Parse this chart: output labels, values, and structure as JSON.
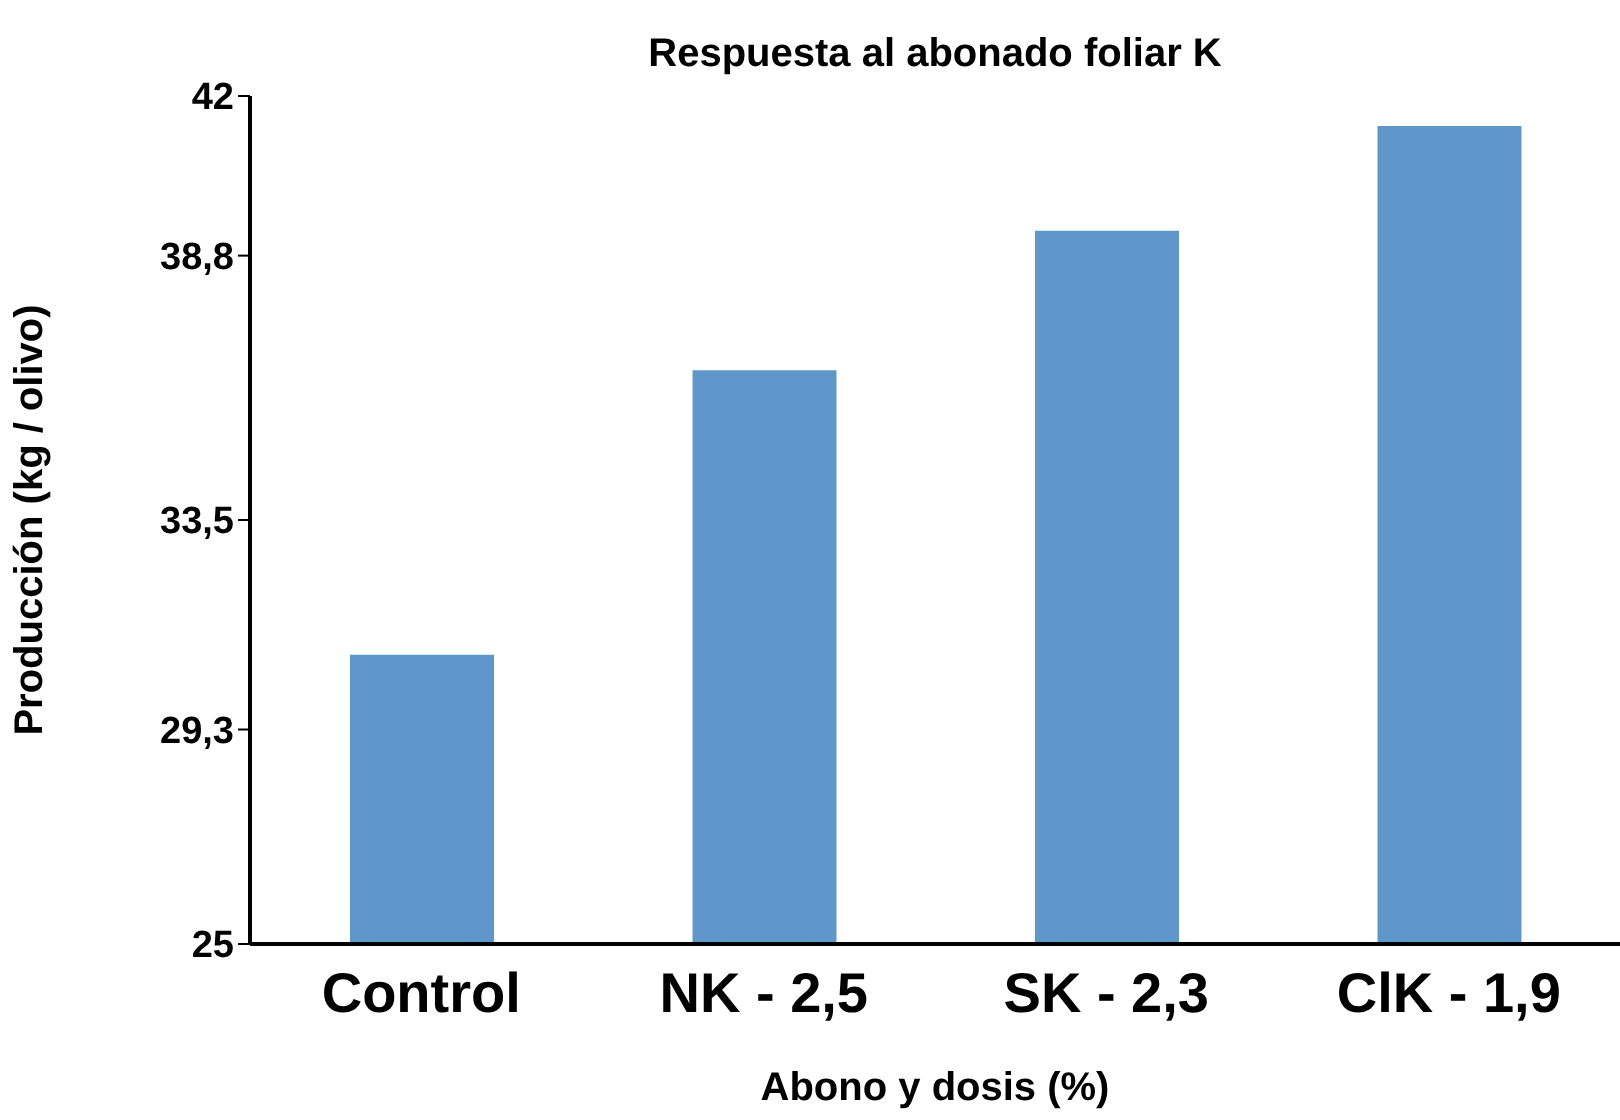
{
  "chart_data": {
    "type": "bar",
    "title": "Respuesta al abonado foliar K",
    "xlabel": "Abono y dosis (%)",
    "ylabel": "Producción (kg / olivo)",
    "categories": [
      "Control",
      "NK - 2,5",
      "SK - 2,3",
      "ClK - 1,9"
    ],
    "values": [
      30.8,
      36.5,
      39.3,
      41.4
    ],
    "color": "#6097cb",
    "ylim": [
      25,
      42
    ],
    "yticks": [
      25,
      {
        "value": 29.3,
        "label": "29,3"
      },
      {
        "value": 33.5,
        "label": "33,5"
      },
      {
        "value": 38.8,
        "label": "38,8"
      },
      42
    ],
    "grid": false,
    "legend": false
  }
}
